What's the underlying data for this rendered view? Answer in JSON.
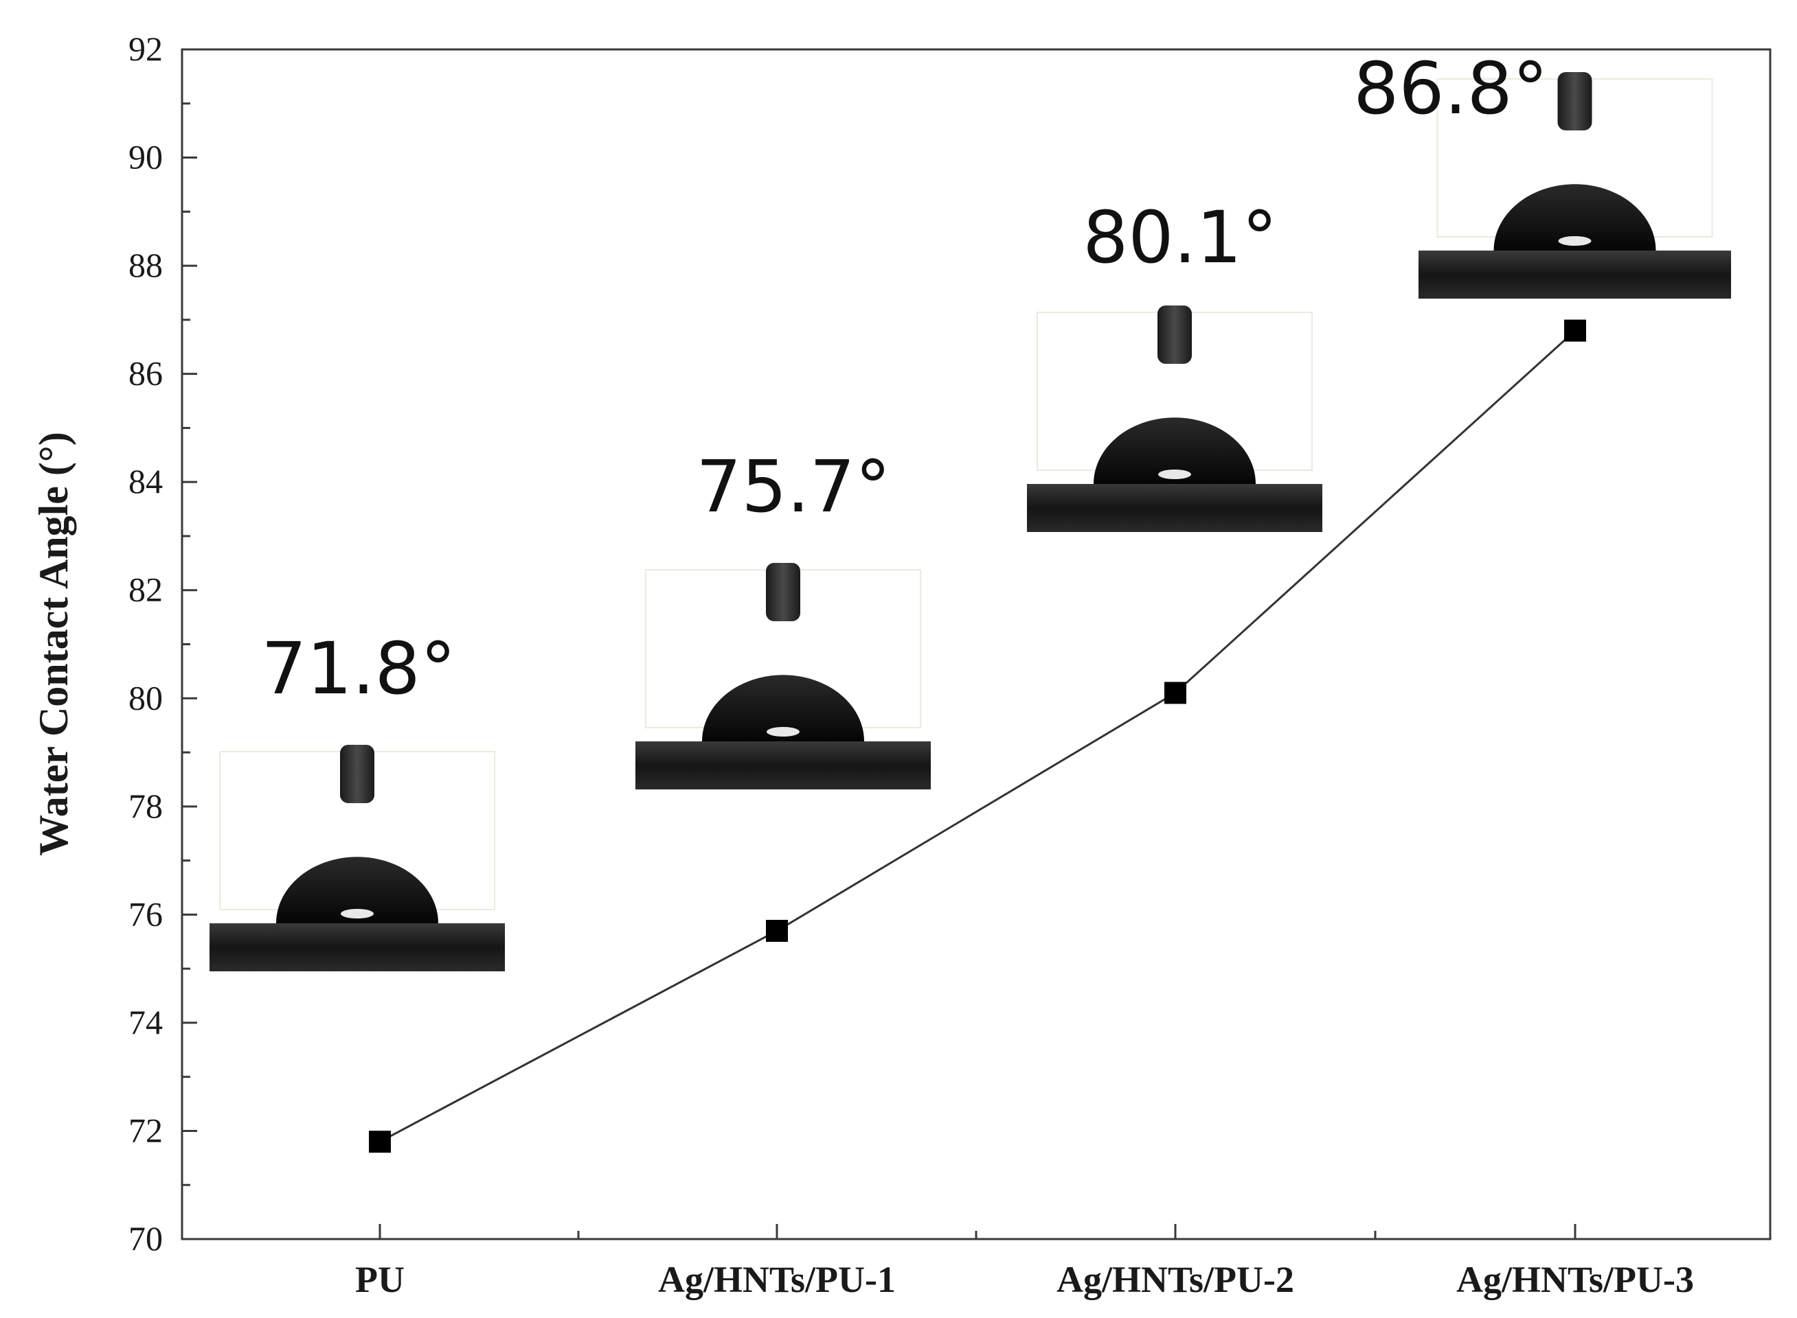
{
  "chart_data": {
    "type": "line",
    "title": "",
    "xlabel": "",
    "ylabel": "Water Contact Angle (°)",
    "categories": [
      "PU",
      "Ag/HNTs/PU-1",
      "Ag/HNTs/PU-2",
      "Ag/HNTs/PU-3"
    ],
    "series": [
      {
        "values": [
          71.8,
          75.7,
          80.1,
          86.8
        ]
      }
    ],
    "data_labels": [
      "71.8°",
      "75.7°",
      "80.1°",
      "86.8°"
    ],
    "ylim": [
      70,
      92
    ],
    "yticks": [
      70,
      72,
      74,
      76,
      78,
      80,
      82,
      84,
      86,
      88,
      90,
      92
    ],
    "marker": "square",
    "line_color": "#333333",
    "marker_color": "#000000",
    "grid": false,
    "legend": false,
    "inset_images": [
      "water-droplet-photo",
      "water-droplet-photo",
      "water-droplet-photo",
      "water-droplet-photo"
    ]
  }
}
